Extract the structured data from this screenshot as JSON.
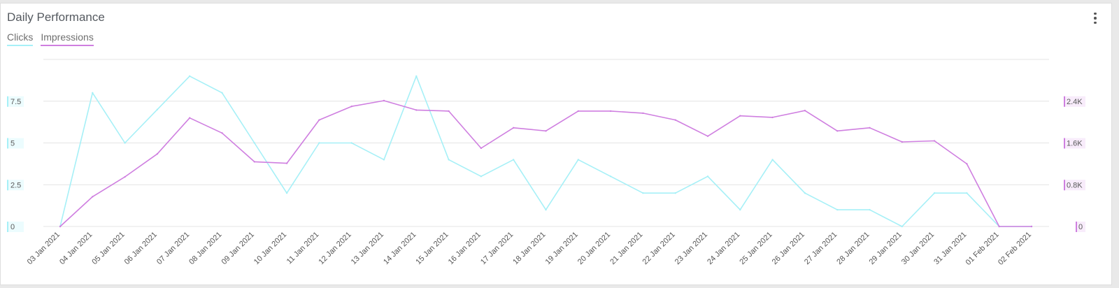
{
  "header": {
    "title": "Daily Performance",
    "menu_icon": "vertical-ellipsis-icon"
  },
  "colors": {
    "clicks": "#a6f0f7",
    "impressions": "#cf7fe0",
    "grid": "#e4e4e4"
  },
  "chart_data": {
    "type": "line",
    "title": "Daily Performance",
    "x": [
      "03 Jan 2021",
      "04 Jan 2021",
      "05 Jan 2021",
      "06 Jan 2021",
      "07 Jan 2021",
      "08 Jan 2021",
      "09 Jan 2021",
      "10 Jan 2021",
      "11 Jan 2021",
      "12 Jan 2021",
      "13 Jan 2021",
      "14 Jan 2021",
      "15 Jan 2021",
      "16 Jan 2021",
      "17 Jan 2021",
      "18 Jan 2021",
      "19 Jan 2021",
      "20 Jan 2021",
      "21 Jan 2021",
      "22 Jan 2021",
      "23 Jan 2021",
      "24 Jan 2021",
      "25 Jan 2021",
      "26 Jan 2021",
      "27 Jan 2021",
      "28 Jan 2021",
      "29 Jan 2021",
      "30 Jan 2021",
      "31 Jan 2021",
      "01 Feb 2021",
      "02 Feb 2021"
    ],
    "series": [
      {
        "name": "Clicks",
        "axis": "left",
        "values": [
          0,
          8,
          5,
          7,
          9,
          8,
          5,
          2,
          5,
          5,
          4,
          9,
          4,
          3,
          4,
          1,
          4,
          3,
          2,
          2,
          3,
          1,
          4,
          2,
          1,
          1,
          0,
          2,
          2,
          0,
          0
        ]
      },
      {
        "name": "Impressions",
        "axis": "right",
        "values": [
          0,
          570,
          950,
          1390,
          2080,
          1790,
          1240,
          1210,
          2040,
          2300,
          2410,
          2230,
          2210,
          1500,
          1890,
          1830,
          2210,
          2210,
          2170,
          2040,
          1730,
          2120,
          2090,
          2220,
          1830,
          1890,
          1620,
          1640,
          1200,
          0,
          0
        ]
      }
    ],
    "y_left": {
      "ticks": [
        "0",
        "2.5",
        "5",
        "7.5"
      ],
      "tick_values": [
        0,
        2.5,
        5,
        7.5
      ],
      "range": [
        0,
        10
      ]
    },
    "y_right": {
      "ticks": [
        "0",
        "0.8K",
        "1.6K",
        "2.4K"
      ],
      "tick_values": [
        0,
        800,
        1600,
        2400
      ],
      "range": [
        0,
        3200
      ]
    },
    "grid": true,
    "legend": "top-left"
  }
}
